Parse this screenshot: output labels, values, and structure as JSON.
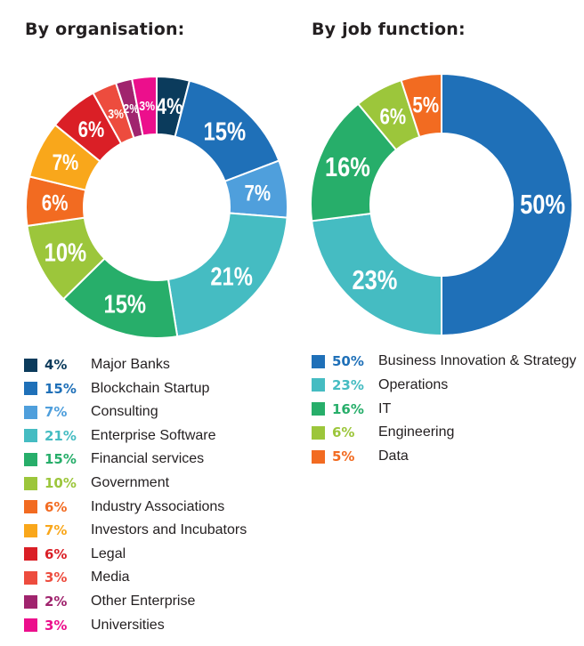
{
  "chart_data": [
    {
      "type": "pie",
      "title": "By organisation:",
      "slices": [
        {
          "label": "Major Banks",
          "value": 4,
          "value_label": "4%",
          "color": "#0b3b5c"
        },
        {
          "label": "Blockchain Startup",
          "value": 15,
          "value_label": "15%",
          "color": "#1f70b8"
        },
        {
          "label": "Consulting",
          "value": 7,
          "value_label": "7%",
          "color": "#4f9fdc"
        },
        {
          "label": "Enterprise Software",
          "value": 21,
          "value_label": "21%",
          "color": "#45bcc2"
        },
        {
          "label": "Financial services",
          "value": 15,
          "value_label": "15%",
          "color": "#27ae6a"
        },
        {
          "label": "Government",
          "value": 10,
          "value_label": "10%",
          "color": "#9cc63b"
        },
        {
          "label": "Industry Associations",
          "value": 6,
          "value_label": "6%",
          "color": "#f26b21"
        },
        {
          "label": "Investors and Incubators",
          "value": 7,
          "value_label": "7%",
          "color": "#f9a71b"
        },
        {
          "label": "Legal",
          "value": 6,
          "value_label": "6%",
          "color": "#da1f26"
        },
        {
          "label": "Media",
          "value": 3,
          "value_label": "3%",
          "color": "#ed4c3e"
        },
        {
          "label": "Other Enterprise",
          "value": 2,
          "value_label": "2%",
          "color": "#a0246e"
        },
        {
          "label": "Universities",
          "value": 3,
          "value_label": "3%",
          "color": "#ec0f8c"
        }
      ]
    },
    {
      "type": "pie",
      "title": "By job function:",
      "slices": [
        {
          "label": "Business Innovation & Strategy",
          "value": 50,
          "value_label": "50%",
          "color": "#1f70b8"
        },
        {
          "label": "Operations",
          "value": 23,
          "value_label": "23%",
          "color": "#45bcc2"
        },
        {
          "label": "IT",
          "value": 16,
          "value_label": "16%",
          "color": "#27ae6a"
        },
        {
          "label": "Engineering",
          "value": 6,
          "value_label": "6%",
          "color": "#9cc63b"
        },
        {
          "label": "Data",
          "value": 5,
          "value_label": "5%",
          "color": "#f26b21"
        }
      ]
    }
  ]
}
